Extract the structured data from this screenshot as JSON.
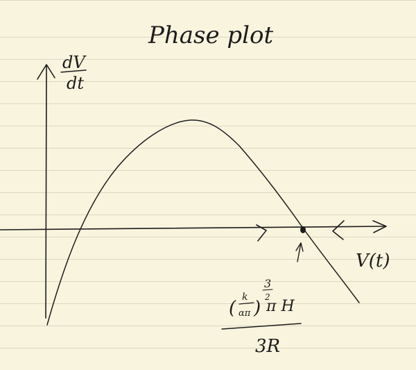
{
  "title": "Phase plot",
  "y_axis_label": {
    "numerator": "dV",
    "denominator": "dt"
  },
  "x_axis_label": "V(t)",
  "equilibrium": {
    "numerator": "(k/απ)^(3/2) π H",
    "numerator_base": "(",
    "numerator_k": "k",
    "numerator_alpha_pi": "απ",
    "numerator_close": ")",
    "numerator_exponent_top": "3",
    "numerator_exponent_bottom": "2",
    "numerator_tail": "π H",
    "denominator": "3R"
  },
  "colors": {
    "ink": "#1c1c1c",
    "paper": "#f8f4de",
    "rule": "#dcd7c1"
  },
  "icons": [
    "arrow-right-icon",
    "arrow-left-icon",
    "pointer-arrow-icon",
    "equilibrium-dot-icon"
  ]
}
